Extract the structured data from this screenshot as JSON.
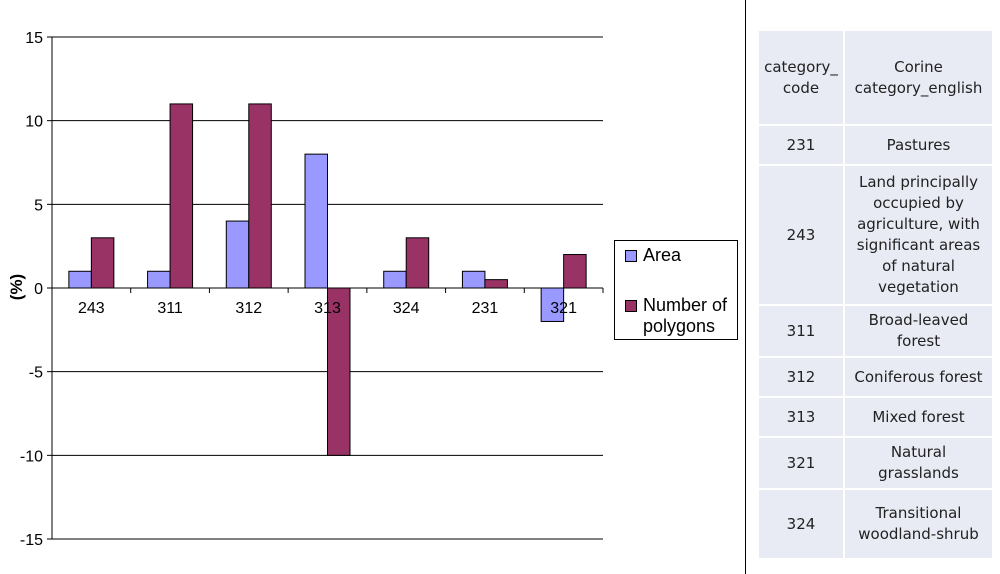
{
  "chart_data": {
    "type": "bar",
    "categories": [
      "243",
      "311",
      "312",
      "313",
      "324",
      "231",
      "321"
    ],
    "series": [
      {
        "name": "Area",
        "values": [
          1,
          1,
          4,
          8,
          1,
          1,
          -2
        ],
        "color": "#9999ff"
      },
      {
        "name": "Number of polygons",
        "values": [
          3,
          11,
          11,
          -10,
          3,
          0.5,
          2
        ],
        "color": "#993366"
      }
    ],
    "ylabel": "(%)",
    "ylim": [
      -15,
      15
    ],
    "yticks": [
      15,
      10,
      5,
      0,
      -5,
      -10,
      -15
    ],
    "grid": true,
    "legend": "right"
  },
  "table": {
    "headers": [
      "category_ code",
      "Corine category_english"
    ],
    "rows": [
      [
        "231",
        "Pastures"
      ],
      [
        "243",
        "Land principally occupied by agriculture, with significant areas of natural vegetation"
      ],
      [
        "311",
        "Broad-leaved forest"
      ],
      [
        "312",
        "Coniferous forest"
      ],
      [
        "313",
        "Mixed forest"
      ],
      [
        "321",
        "Natural grasslands"
      ],
      [
        "324",
        "Transitional woodland-shrub"
      ]
    ]
  }
}
